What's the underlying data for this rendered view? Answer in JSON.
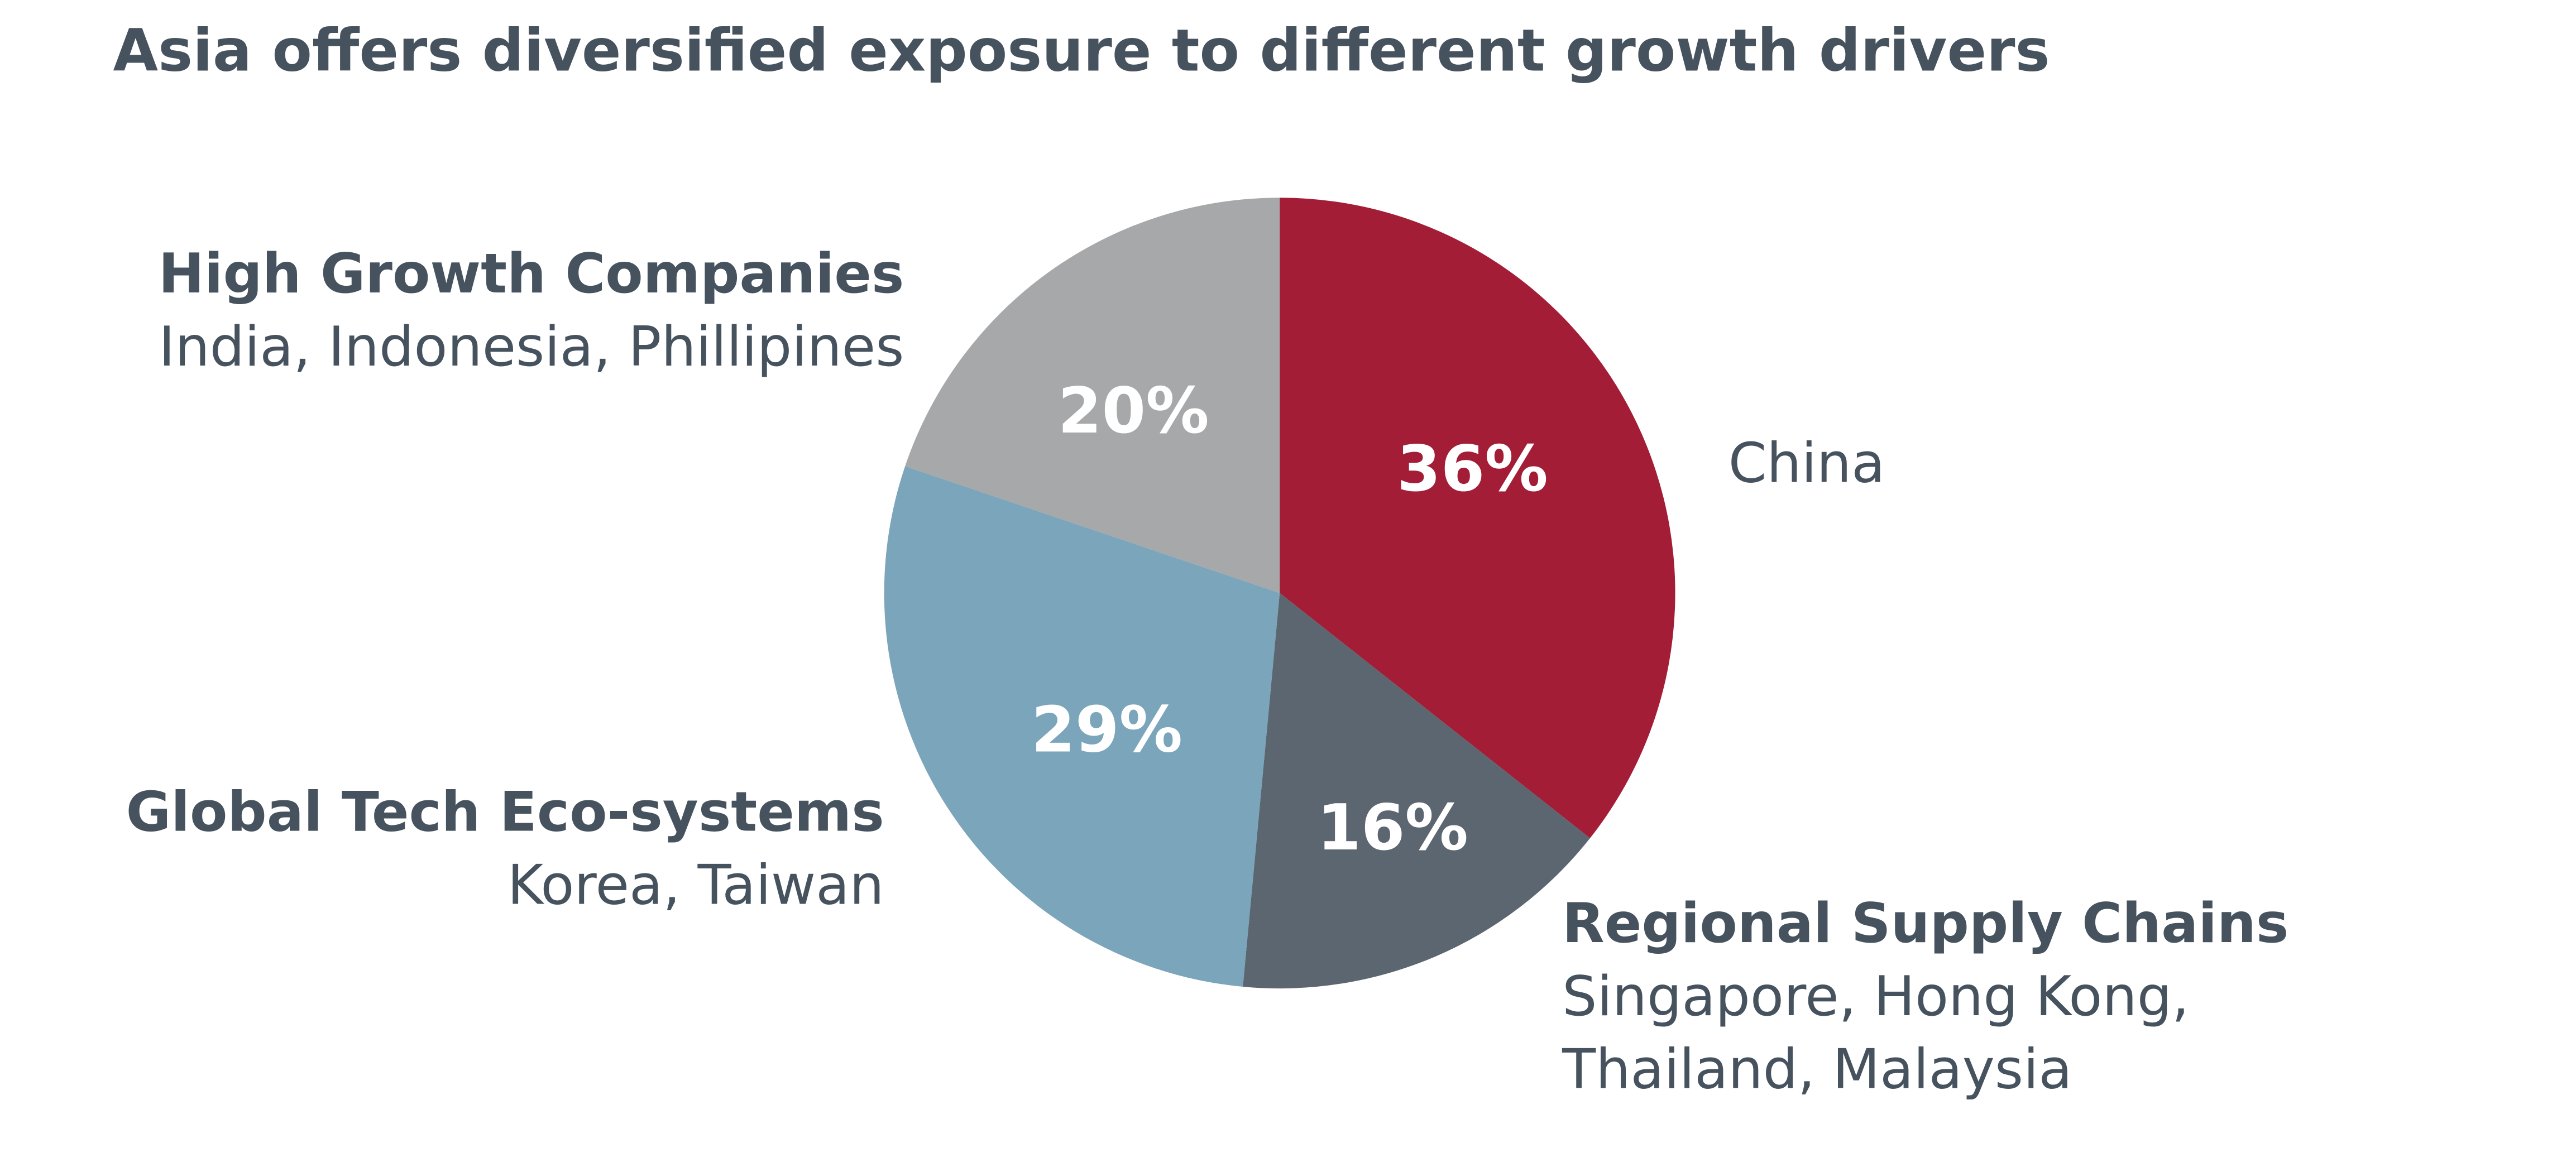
{
  "chart_data": {
    "type": "pie",
    "title": "Asia offers diversified exposure to different growth drivers",
    "categories": [
      "China",
      "Regional Supply Chains",
      "Global Tech Eco-systems",
      "High Growth Companies"
    ],
    "descriptions": [
      [],
      [
        "Singapore, Hong Kong,",
        "Thailand, Malaysia"
      ],
      [
        "Korea, Taiwan"
      ],
      [
        "India, Indonesia, Phillipines"
      ]
    ],
    "values": [
      36,
      16,
      29,
      20
    ],
    "value_labels": [
      "36%",
      "16%",
      "29%",
      "20%"
    ],
    "colors": [
      "#a31d37",
      "#5b6671",
      "#7aa5bb",
      "#a7a8aa"
    ]
  }
}
